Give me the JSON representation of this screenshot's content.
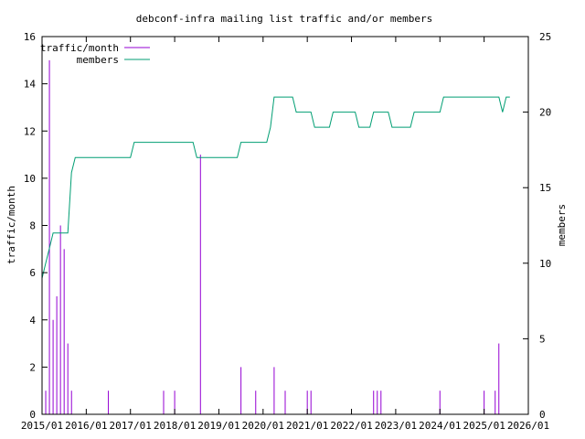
{
  "chart_data": {
    "type": "bar+line",
    "title": "debconf-infra mailing list traffic and/or members",
    "ylabel_left": "traffic/month",
    "ylabel_right": "members",
    "xlabel": "",
    "grid": false,
    "legend_placement": "top-left",
    "x_range": [
      "2015-01",
      "2026-01"
    ],
    "x_tick_labels": [
      "2015/01",
      "2016/01",
      "2017/01",
      "2018/01",
      "2019/01",
      "2020/01",
      "2021/01",
      "2022/01",
      "2023/01",
      "2024/01",
      "2025/01",
      "2026/01"
    ],
    "ylim_left": [
      0,
      16
    ],
    "y_tick_labels_left": [
      "0",
      "2",
      "4",
      "6",
      "8",
      "10",
      "12",
      "14",
      "16"
    ],
    "ylim_right": [
      0,
      25
    ],
    "y_tick_labels_right": [
      "0",
      "5",
      "10",
      "15",
      "20",
      "25"
    ],
    "series": [
      {
        "name": "traffic/month",
        "kind": "impulses",
        "axis": "left",
        "color": "#9400d3",
        "points": [
          [
            "2015-02",
            1
          ],
          [
            "2015-03",
            15
          ],
          [
            "2015-04",
            4
          ],
          [
            "2015-05",
            5
          ],
          [
            "2015-06",
            8
          ],
          [
            "2015-07",
            7
          ],
          [
            "2015-08",
            3
          ],
          [
            "2015-09",
            1
          ],
          [
            "2016-07",
            1
          ],
          [
            "2017-10",
            1
          ],
          [
            "2018-01",
            1
          ],
          [
            "2018-08",
            11
          ],
          [
            "2019-07",
            2
          ],
          [
            "2019-11",
            1
          ],
          [
            "2020-04",
            2
          ],
          [
            "2020-07",
            1
          ],
          [
            "2021-01",
            1
          ],
          [
            "2021-02",
            1
          ],
          [
            "2022-07",
            1
          ],
          [
            "2022-08",
            1
          ],
          [
            "2022-09",
            1
          ],
          [
            "2024-01",
            1
          ],
          [
            "2025-01",
            1
          ],
          [
            "2025-04",
            1
          ],
          [
            "2025-05",
            3
          ]
        ]
      },
      {
        "name": "members",
        "kind": "line",
        "axis": "right",
        "color": "#009e73",
        "points": [
          [
            "2015-01",
            9
          ],
          [
            "2015-02",
            10
          ],
          [
            "2015-03",
            11
          ],
          [
            "2015-04",
            12
          ],
          [
            "2015-08",
            12
          ],
          [
            "2015-09",
            16
          ],
          [
            "2015-10",
            17
          ],
          [
            "2017-01",
            17
          ],
          [
            "2017-02",
            18
          ],
          [
            "2018-06",
            18
          ],
          [
            "2018-07",
            17
          ],
          [
            "2019-06",
            17
          ],
          [
            "2019-07",
            18
          ],
          [
            "2020-02",
            18
          ],
          [
            "2020-03",
            19
          ],
          [
            "2020-04",
            21
          ],
          [
            "2020-09",
            21
          ],
          [
            "2020-10",
            20
          ],
          [
            "2021-02",
            20
          ],
          [
            "2021-03",
            19
          ],
          [
            "2021-07",
            19
          ],
          [
            "2021-08",
            20
          ],
          [
            "2022-02",
            20
          ],
          [
            "2022-03",
            19
          ],
          [
            "2022-06",
            19
          ],
          [
            "2022-07",
            20
          ],
          [
            "2022-11",
            20
          ],
          [
            "2022-12",
            19
          ],
          [
            "2023-05",
            19
          ],
          [
            "2023-06",
            20
          ],
          [
            "2024-01",
            20
          ],
          [
            "2024-02",
            21
          ],
          [
            "2025-05",
            21
          ],
          [
            "2025-06",
            20
          ],
          [
            "2025-07",
            21
          ],
          [
            "2025-08",
            21
          ]
        ]
      }
    ]
  }
}
